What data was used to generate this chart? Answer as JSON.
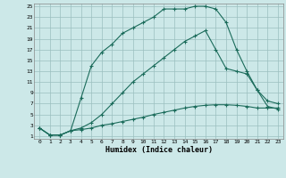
{
  "xlabel": "Humidex (Indice chaleur)",
  "bg_color": "#cce8e8",
  "line_color": "#1a6b5a",
  "grid_color": "#9bbfbf",
  "xlim": [
    -0.5,
    23.5
  ],
  "ylim": [
    0.5,
    25.5
  ],
  "xticks": [
    0,
    1,
    2,
    3,
    4,
    5,
    6,
    7,
    8,
    9,
    10,
    11,
    12,
    13,
    14,
    15,
    16,
    17,
    18,
    19,
    20,
    21,
    22,
    23
  ],
  "yticks": [
    1,
    3,
    5,
    7,
    9,
    11,
    13,
    15,
    17,
    19,
    21,
    23,
    25
  ],
  "curve1_x": [
    0,
    1,
    2,
    3,
    4,
    5,
    6,
    7,
    8,
    9,
    10,
    11,
    12,
    13,
    14,
    15,
    16,
    17,
    18,
    19,
    20,
    21,
    22,
    23
  ],
  "curve1_y": [
    2.5,
    1.2,
    1.2,
    2.0,
    8.0,
    14.0,
    16.5,
    18.0,
    20.0,
    21.0,
    22.0,
    23.0,
    24.5,
    24.5,
    24.5,
    25.0,
    25.0,
    24.5,
    22.0,
    17.0,
    13.0,
    9.5,
    6.5,
    6.0
  ],
  "curve2_x": [
    0,
    1,
    2,
    3,
    4,
    5,
    6,
    7,
    8,
    9,
    10,
    11,
    12,
    13,
    14,
    15,
    16,
    17,
    18,
    19,
    20,
    21,
    22,
    23
  ],
  "curve2_y": [
    2.5,
    1.2,
    1.2,
    2.0,
    2.5,
    3.5,
    5.0,
    7.0,
    9.0,
    11.0,
    12.5,
    14.0,
    15.5,
    17.0,
    18.5,
    19.5,
    20.5,
    17.0,
    13.5,
    13.0,
    12.5,
    9.5,
    7.5,
    7.0
  ],
  "curve3_x": [
    0,
    1,
    2,
    3,
    4,
    5,
    6,
    7,
    8,
    9,
    10,
    11,
    12,
    13,
    14,
    15,
    16,
    17,
    18,
    19,
    20,
    21,
    22,
    23
  ],
  "curve3_y": [
    2.5,
    1.2,
    1.2,
    2.0,
    2.2,
    2.5,
    3.0,
    3.3,
    3.7,
    4.1,
    4.5,
    5.0,
    5.4,
    5.8,
    6.2,
    6.5,
    6.7,
    6.8,
    6.8,
    6.7,
    6.5,
    6.2,
    6.2,
    6.2
  ]
}
